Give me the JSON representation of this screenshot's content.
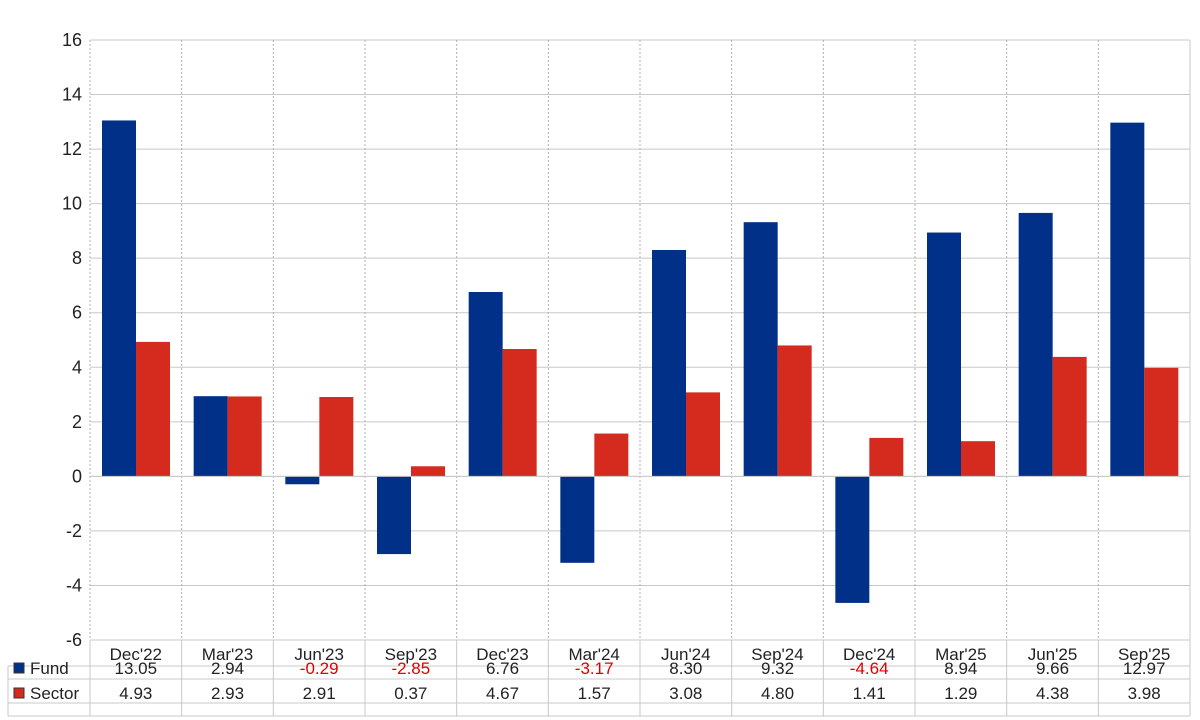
{
  "chart_data": {
    "type": "bar",
    "categories": [
      "Dec'22",
      "Mar'23",
      "Jun'23",
      "Sep'23",
      "Dec'23",
      "Mar'24",
      "Jun'24",
      "Sep'24",
      "Dec'24",
      "Mar'25",
      "Jun'25",
      "Sep'25"
    ],
    "series": [
      {
        "name": "Fund",
        "color": "#003087",
        "values": [
          13.05,
          2.94,
          -0.29,
          -2.85,
          6.76,
          -3.17,
          8.3,
          9.32,
          -4.64,
          8.94,
          9.66,
          12.97
        ]
      },
      {
        "name": "Sector",
        "color": "#d52b1e",
        "values": [
          4.93,
          2.93,
          2.91,
          0.37,
          4.67,
          1.57,
          3.08,
          4.8,
          1.41,
          1.29,
          4.38,
          3.98
        ]
      }
    ],
    "ylim": [
      -6,
      16
    ],
    "yticks": [
      -6,
      -4,
      -2,
      0,
      2,
      4,
      6,
      8,
      10,
      12,
      14,
      16
    ],
    "negative_value_color": "#e00000",
    "grid": true,
    "legend": "data-table-below"
  }
}
